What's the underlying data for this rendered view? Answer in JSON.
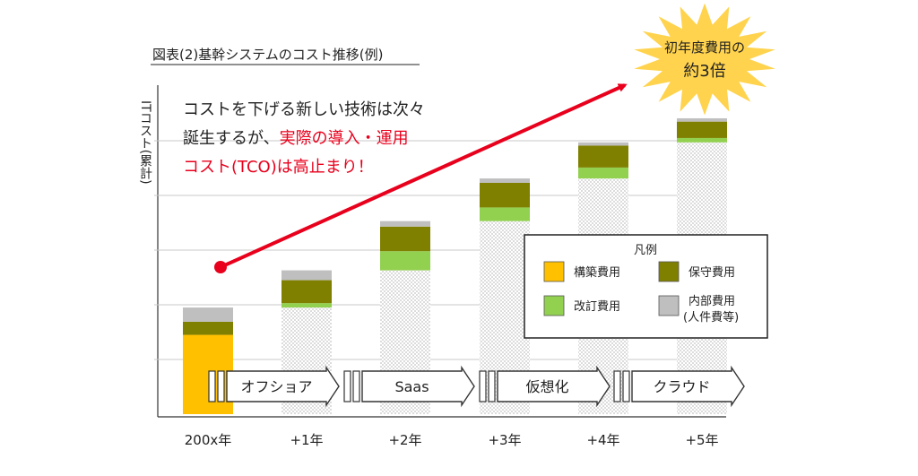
{
  "figure_title": "図表(2)基幹システムのコスト推移(例)",
  "y_axis_label": "ITコスト(累計)",
  "starburst_text": [
    "初年度費用の",
    "約3倍"
  ],
  "annotation": {
    "line1": "コストを下げる新しい技術は次々",
    "line2_plain": "誕生するが、",
    "line2_red": "実際の導入・運用",
    "line3_red": "コスト(TCO)は高止まり！"
  },
  "technologies": [
    "オフショア",
    "Saas",
    "仮想化",
    "クラウド"
  ],
  "legend": {
    "title": "凡例",
    "items": [
      {
        "key": "build",
        "label": "構築費用",
        "color": "#ffc000"
      },
      {
        "key": "maint",
        "label": "保守費用",
        "color": "#808000"
      },
      {
        "key": "revise",
        "label": "改訂費用",
        "color": "#92d050"
      },
      {
        "key": "internal",
        "label": "内部費用",
        "label2": "(人件費等)",
        "color": "#bfbfbf"
      }
    ]
  },
  "colors": {
    "accent_red": "#e8001c",
    "hatch": "#e4e4e4",
    "starburst": "#ffd34d"
  },
  "chart_data": {
    "type": "bar",
    "stacked": true,
    "categories": [
      "200x年",
      "+1年",
      "+2年",
      "+3年",
      "+4年",
      "+5年"
    ],
    "series": [
      {
        "name": "構築費用",
        "values": [
          1.45,
          0,
          0,
          0,
          0,
          0
        ]
      },
      {
        "name": "改訂費用",
        "values": [
          0,
          0.08,
          0.35,
          0.25,
          0.2,
          0.08
        ]
      },
      {
        "name": "保守費用",
        "values": [
          0.24,
          0.42,
          0.45,
          0.45,
          0.4,
          0.3
        ]
      },
      {
        "name": "内部費用(人件費等)",
        "values": [
          0.26,
          0.18,
          0.1,
          0.08,
          0.06,
          0.06
        ]
      }
    ],
    "cumulative_previous_years": [
      0,
      1.95,
      2.63,
      3.53,
      4.31,
      4.97
    ],
    "ylim": [
      0,
      5.5
    ],
    "grid": true,
    "legend_position": "bottom-right"
  }
}
